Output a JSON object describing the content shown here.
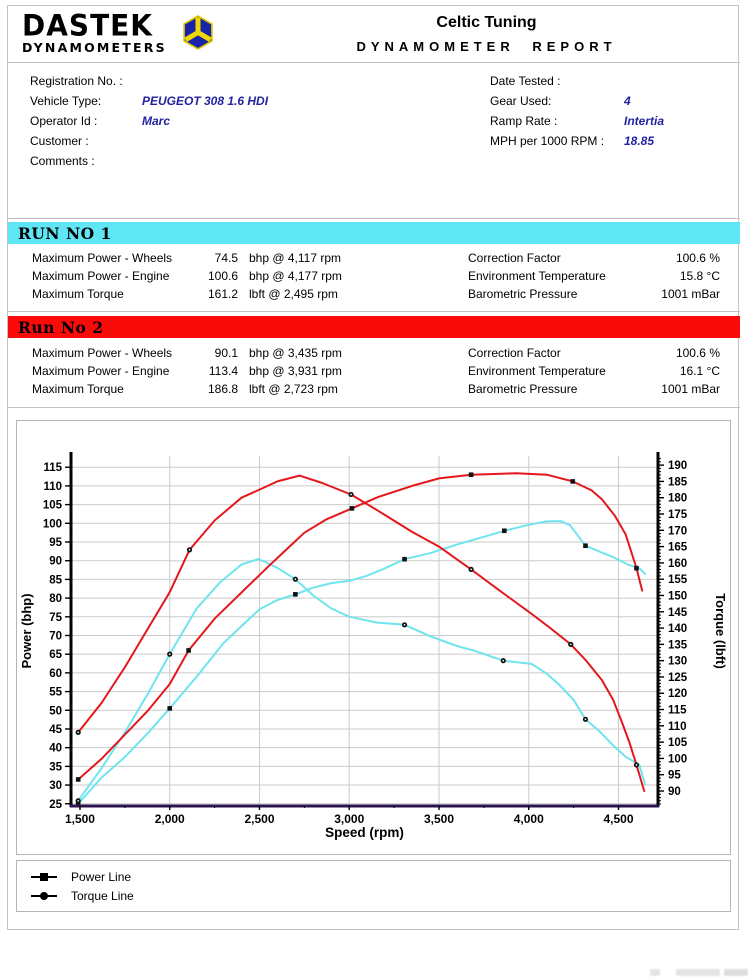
{
  "header": {
    "logo_line1": "DASTEK",
    "logo_line2": "DYNAMOMETERS",
    "title": "Celtic Tuning",
    "subtitle": "DYNAMOMETER REPORT"
  },
  "info": {
    "left": [
      {
        "label": "Registration No. :",
        "value": ""
      },
      {
        "label": "Vehicle Type:",
        "value": "PEUGEOT 308 1.6 HDI"
      },
      {
        "label": "Operator Id :",
        "value": "Marc"
      },
      {
        "label": "Customer :",
        "value": ""
      },
      {
        "label": "Comments :",
        "value": ""
      }
    ],
    "right": [
      {
        "label": "Date Tested :",
        "value": ""
      },
      {
        "label": "Gear Used:",
        "value": "4"
      },
      {
        "label": "Ramp Rate :",
        "value": "Intertia"
      },
      {
        "label": "MPH per 1000 RPM :",
        "value": "18.85"
      }
    ]
  },
  "runs": [
    {
      "banner": "RUN NO 1",
      "left": [
        {
          "label": "Maximum Power - Wheels",
          "value": "74.5",
          "unit": "bhp @ 4,117 rpm"
        },
        {
          "label": "Maximum Power - Engine",
          "value": "100.6",
          "unit": "bhp @ 4,177 rpm"
        },
        {
          "label": "Maximum Torque",
          "value": "161.2",
          "unit": "lbft @ 2,495 rpm"
        }
      ],
      "right": [
        {
          "label": "Correction Factor",
          "value": "100.6 %"
        },
        {
          "label": "Environment Temperature",
          "value": "15.8 °C"
        },
        {
          "label": "Barometric Pressure",
          "value": "1001 mBar"
        }
      ]
    },
    {
      "banner": "Run No 2",
      "left": [
        {
          "label": "Maximum Power - Wheels",
          "value": "90.1",
          "unit": "bhp @ 3,435 rpm"
        },
        {
          "label": "Maximum Power - Engine",
          "value": "113.4",
          "unit": "bhp @ 3,931 rpm"
        },
        {
          "label": "Maximum Torque",
          "value": "186.8",
          "unit": "lbft @ 2,723 rpm"
        }
      ],
      "right": [
        {
          "label": "Correction Factor",
          "value": "100.6 %"
        },
        {
          "label": "Environment Temperature",
          "value": "16.1 °C"
        },
        {
          "label": "Barometric Pressure",
          "value": "1001 mBar"
        }
      ]
    }
  ],
  "legend": [
    {
      "marker": "square",
      "label": "Power Line"
    },
    {
      "marker": "circle",
      "label": "Torque Line"
    }
  ],
  "colors": {
    "run1_banner": "#5fe6f5",
    "run2_banner": "#fb0a0a",
    "value_blue": "#2323a2",
    "curve_run2": "#e4181c",
    "curve_run1": "#6fe4ef",
    "grid": "#cbcbcb",
    "x_axis": "#2c1250"
  },
  "chart_data": {
    "type": "line",
    "xlabel": "Speed (rpm)",
    "ylabel_left": "Power (bhp)",
    "ylabel_right": "Torque (lbft)",
    "x_range": [
      1450,
      4720
    ],
    "x_ticks": [
      1500,
      2000,
      2500,
      3000,
      3500,
      4000,
      4500
    ],
    "x_minor_step": 250,
    "y_left_range": [
      24.4,
      118.0
    ],
    "y_left_ticks": [
      25,
      115,
      5
    ],
    "y_right_range": [
      85.4,
      192.8
    ],
    "y_right_ticks": [
      90,
      190,
      5
    ],
    "grid": true,
    "legend_position": "bottom",
    "series": [
      {
        "name": "Run 1 Power",
        "axis": "left",
        "color": "#6fe4ef",
        "marker": "square",
        "marker_at": [
          1490,
          2000,
          2700,
          3308,
          3864,
          4316
        ],
        "points": [
          [
            1490,
            25
          ],
          [
            1620,
            32
          ],
          [
            1750,
            37.5
          ],
          [
            1880,
            44
          ],
          [
            2000,
            50.5
          ],
          [
            2150,
            59
          ],
          [
            2300,
            68
          ],
          [
            2400,
            72.5
          ],
          [
            2500,
            77
          ],
          [
            2600,
            79.5
          ],
          [
            2700,
            81
          ],
          [
            2800,
            82.8
          ],
          [
            2900,
            84
          ],
          [
            3000,
            84.6
          ],
          [
            3100,
            86
          ],
          [
            3200,
            88
          ],
          [
            3308,
            90.4
          ],
          [
            3450,
            92
          ],
          [
            3600,
            94.3
          ],
          [
            3750,
            96.4
          ],
          [
            3864,
            98
          ],
          [
            4000,
            99.6
          ],
          [
            4100,
            100.5
          ],
          [
            4177,
            100.6
          ],
          [
            4230,
            99.5
          ],
          [
            4316,
            94
          ],
          [
            4400,
            92.3
          ],
          [
            4470,
            91
          ],
          [
            4550,
            89
          ],
          [
            4616,
            88
          ],
          [
            4648,
            86.5
          ]
        ]
      },
      {
        "name": "Run 1 Torque",
        "axis": "right",
        "color": "#6fe4ef",
        "marker": "circle",
        "marker_at": [
          1490,
          2000,
          2700,
          3308,
          3858,
          4316
        ],
        "points": [
          [
            1490,
            87
          ],
          [
            1620,
            97
          ],
          [
            1750,
            108
          ],
          [
            1880,
            120
          ],
          [
            2000,
            132
          ],
          [
            2150,
            146
          ],
          [
            2280,
            154
          ],
          [
            2400,
            159.5
          ],
          [
            2495,
            161.2
          ],
          [
            2600,
            158.5
          ],
          [
            2700,
            155
          ],
          [
            2800,
            150
          ],
          [
            2900,
            146
          ],
          [
            3000,
            143.5
          ],
          [
            3150,
            141.7
          ],
          [
            3308,
            141
          ],
          [
            3450,
            137.5
          ],
          [
            3600,
            134.5
          ],
          [
            3700,
            133
          ],
          [
            3858,
            130
          ],
          [
            4016,
            129
          ],
          [
            4100,
            126
          ],
          [
            4163,
            123
          ],
          [
            4250,
            118
          ],
          [
            4316,
            112
          ],
          [
            4400,
            108
          ],
          [
            4470,
            104
          ],
          [
            4540,
            100.5
          ],
          [
            4616,
            98
          ],
          [
            4648,
            92
          ]
        ]
      },
      {
        "name": "Run 2 Power",
        "axis": "left",
        "color": "#e4181c",
        "marker": "square",
        "marker_at": [
          1490,
          2105,
          3015,
          3679,
          4245,
          4600
        ],
        "points": [
          [
            1490,
            31.5
          ],
          [
            1620,
            37
          ],
          [
            1750,
            43.5
          ],
          [
            1880,
            50
          ],
          [
            2000,
            57
          ],
          [
            2105,
            66
          ],
          [
            2250,
            74.5
          ],
          [
            2400,
            81.5
          ],
          [
            2550,
            88.5
          ],
          [
            2650,
            93
          ],
          [
            2750,
            97.5
          ],
          [
            2870,
            101
          ],
          [
            3015,
            104
          ],
          [
            3160,
            107
          ],
          [
            3350,
            110
          ],
          [
            3500,
            112
          ],
          [
            3679,
            113
          ],
          [
            3931,
            113.4
          ],
          [
            4100,
            113
          ],
          [
            4245,
            111.2
          ],
          [
            4350,
            108.8
          ],
          [
            4408,
            106.4
          ],
          [
            4480,
            102
          ],
          [
            4540,
            97
          ],
          [
            4600,
            88
          ],
          [
            4632,
            82
          ]
        ]
      },
      {
        "name": "Run 2 Torque",
        "axis": "right",
        "color": "#e4181c",
        "marker": "circle",
        "marker_at": [
          1490,
          2110,
          3010,
          3679,
          4234,
          4600
        ],
        "points": [
          [
            1490,
            108
          ],
          [
            1620,
            117
          ],
          [
            1750,
            128
          ],
          [
            1880,
            140
          ],
          [
            2000,
            151
          ],
          [
            2110,
            164
          ],
          [
            2250,
            173
          ],
          [
            2400,
            180
          ],
          [
            2500,
            182.5
          ],
          [
            2600,
            185
          ],
          [
            2723,
            186.8
          ],
          [
            2850,
            184.5
          ],
          [
            3010,
            181
          ],
          [
            3160,
            176
          ],
          [
            3350,
            169.5
          ],
          [
            3500,
            165
          ],
          [
            3679,
            158
          ],
          [
            3850,
            151
          ],
          [
            4000,
            145
          ],
          [
            4120,
            140
          ],
          [
            4234,
            135
          ],
          [
            4320,
            130
          ],
          [
            4408,
            124
          ],
          [
            4470,
            118
          ],
          [
            4520,
            111
          ],
          [
            4560,
            105
          ],
          [
            4600,
            98
          ],
          [
            4643,
            90
          ]
        ]
      }
    ]
  }
}
